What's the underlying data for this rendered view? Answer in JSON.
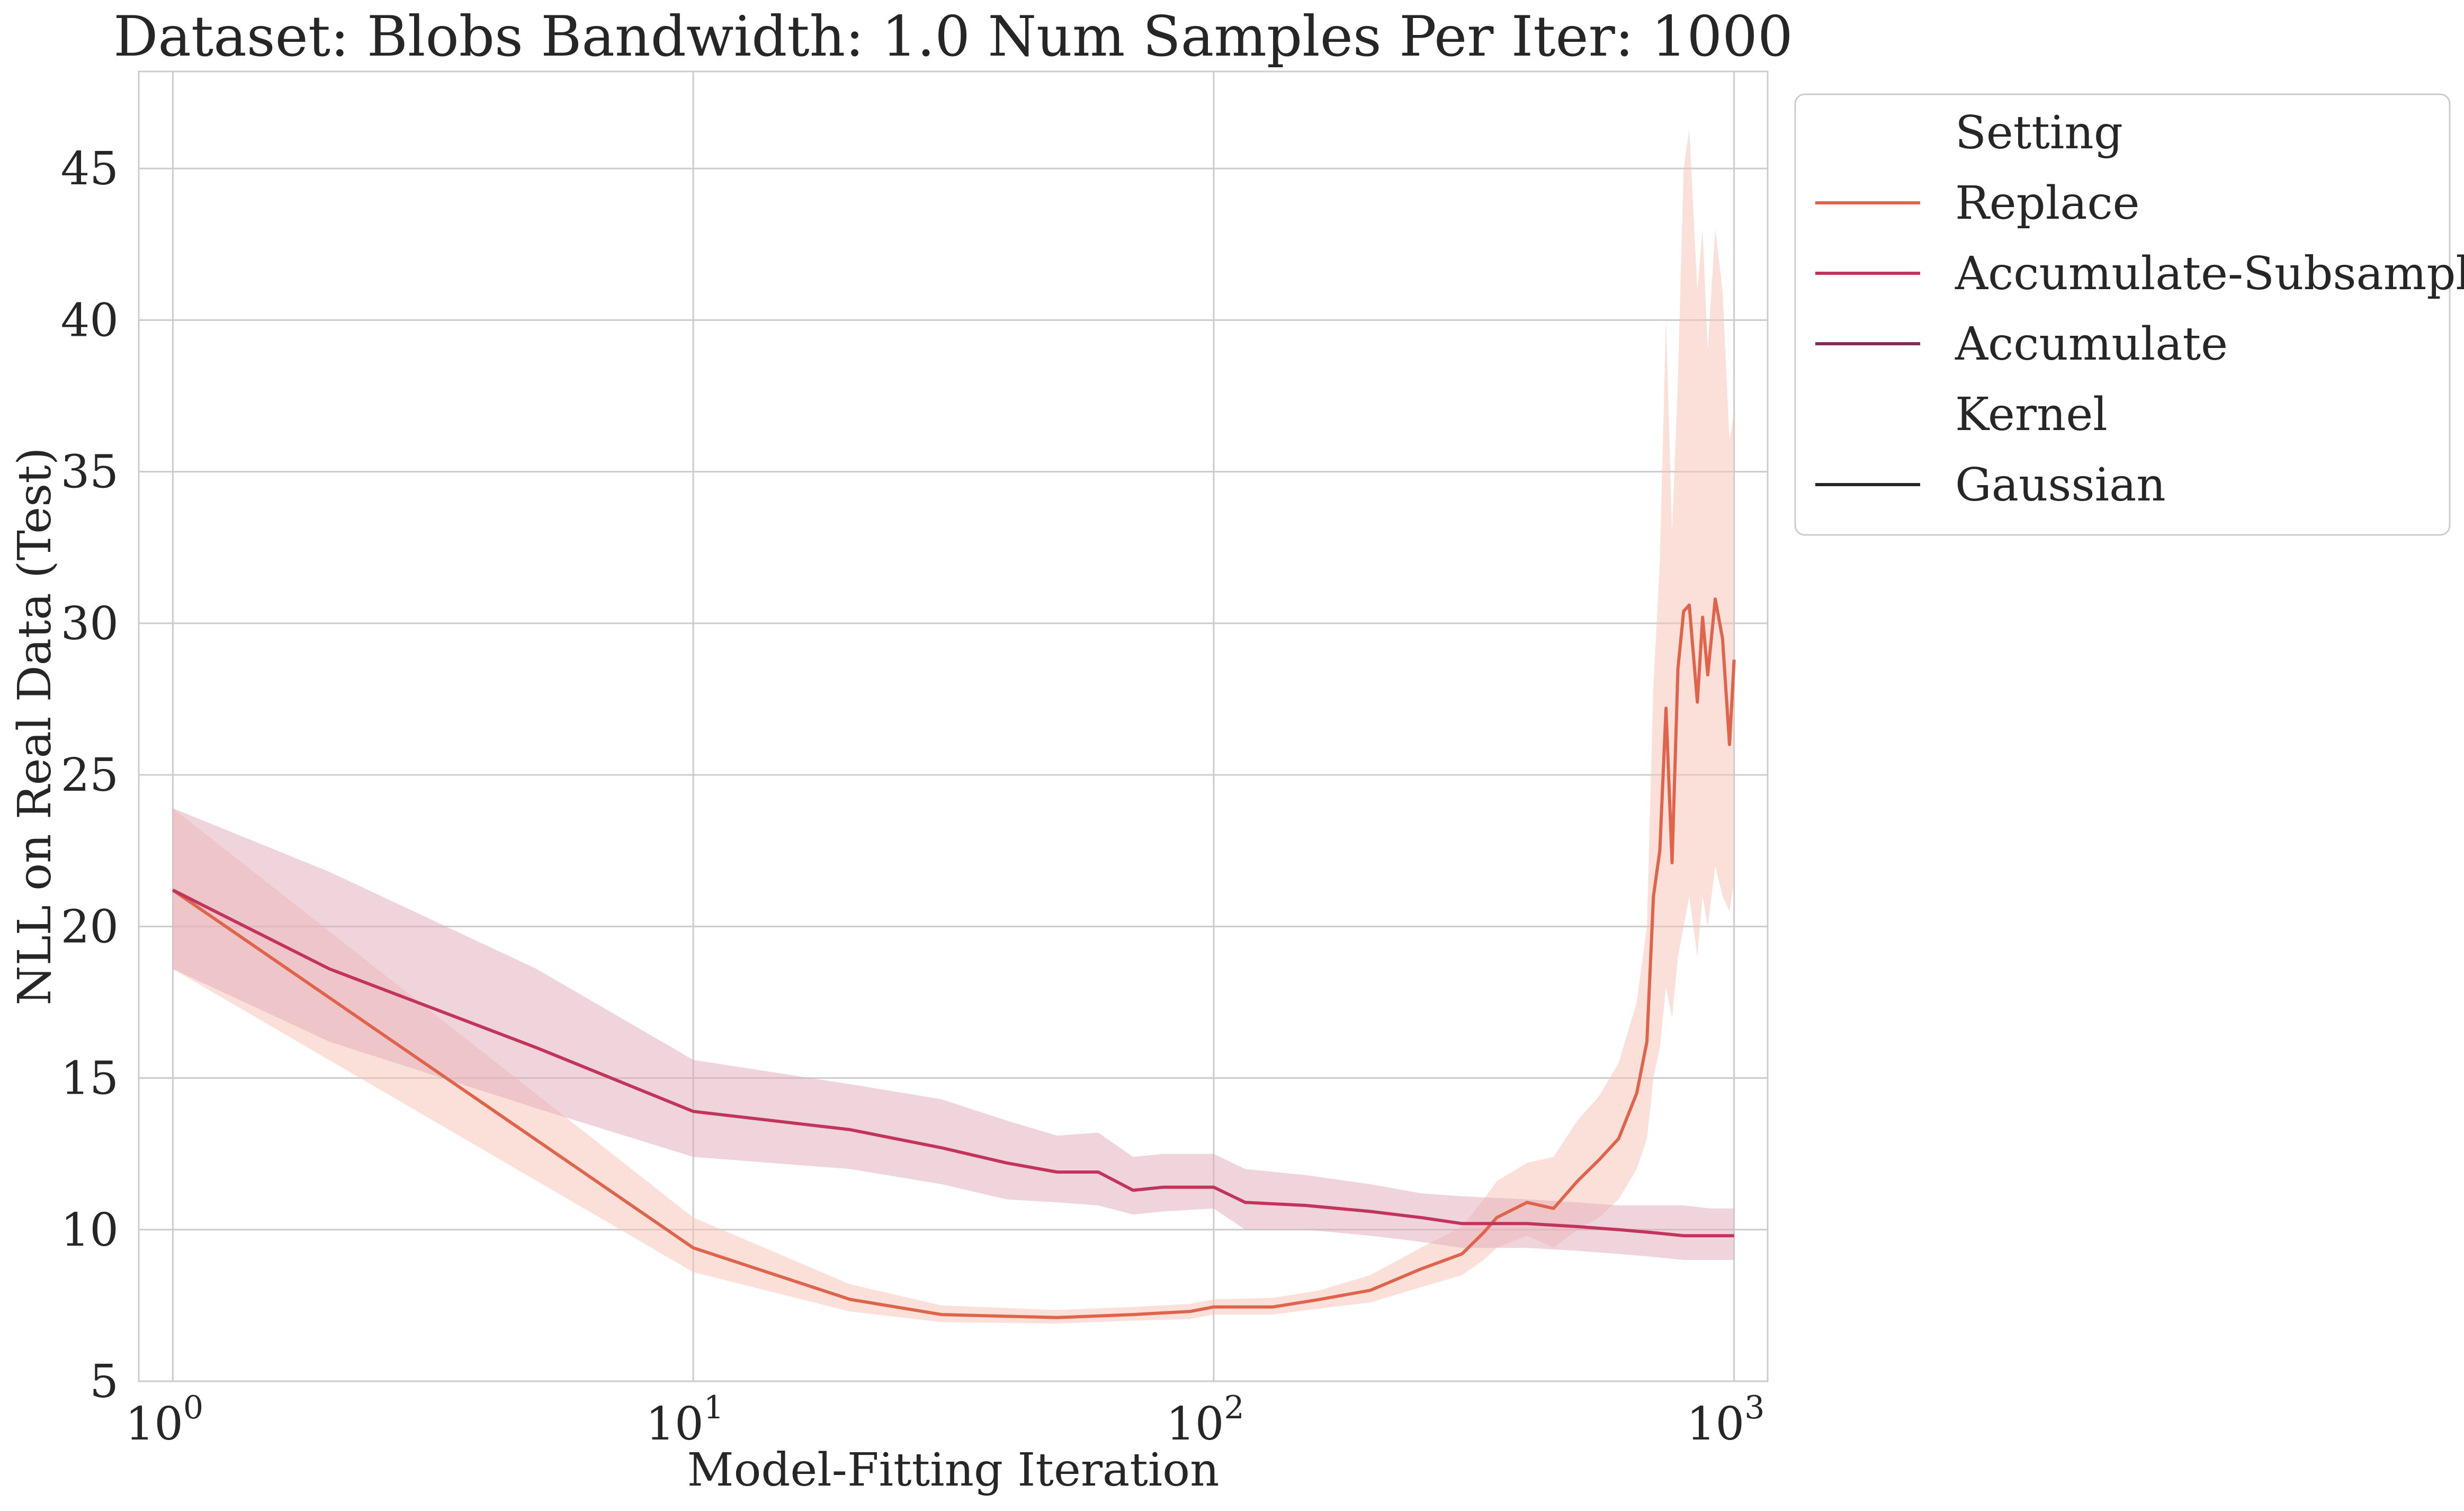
{
  "chart_data": {
    "type": "line",
    "title": "Dataset: Blobs Bandwidth: 1.0 Num Samples Per Iter: 1000",
    "xlabel": "Model-Fitting Iteration",
    "ylabel": "NLL on Real Data (Test)",
    "xscale": "log",
    "xlim": [
      0.86,
      1160
    ],
    "ylim": [
      5,
      48.2
    ],
    "x_ticks": [
      {
        "value": 1,
        "base": "10",
        "exp": "0"
      },
      {
        "value": 10,
        "base": "10",
        "exp": "1"
      },
      {
        "value": 100,
        "base": "10",
        "exp": "2"
      },
      {
        "value": 1000,
        "base": "10",
        "exp": "3"
      }
    ],
    "y_ticks": [
      5,
      10,
      15,
      20,
      25,
      30,
      35,
      40,
      45
    ],
    "grid": true,
    "legend_placement": "outside upper right",
    "legend": {
      "groups": [
        {
          "title": "Setting",
          "entries": [
            {
              "label": "Replace",
              "color": "#e0634b"
            },
            {
              "label": "Accumulate-Subsample",
              "color": "#c2345c"
            },
            {
              "label": "Accumulate",
              "color": "#862c5d"
            }
          ]
        },
        {
          "title": "Kernel",
          "entries": [
            {
              "label": "Gaussian",
              "color": "#262626"
            }
          ]
        }
      ]
    },
    "series": [
      {
        "name": "Replace",
        "color": "#e0634b",
        "band_color": "#f5c1b4",
        "points": [
          [
            1,
            21.2,
            18.6,
            23.9
          ],
          [
            10,
            9.4,
            8.6,
            10.4
          ],
          [
            20,
            7.7,
            7.3,
            8.2
          ],
          [
            30,
            7.2,
            6.95,
            7.5
          ],
          [
            50,
            7.1,
            6.9,
            7.35
          ],
          [
            70,
            7.2,
            7.0,
            7.45
          ],
          [
            90,
            7.3,
            7.05,
            7.55
          ],
          [
            100,
            7.45,
            7.2,
            7.7
          ],
          [
            130,
            7.45,
            7.2,
            7.75
          ],
          [
            160,
            7.7,
            7.4,
            8.0
          ],
          [
            200,
            8.0,
            7.6,
            8.5
          ],
          [
            250,
            8.7,
            8.1,
            9.4
          ],
          [
            300,
            9.2,
            8.5,
            10.1
          ],
          [
            330,
            9.9,
            9.0,
            11.0
          ],
          [
            350,
            10.4,
            9.4,
            11.6
          ],
          [
            400,
            10.9,
            9.8,
            12.2
          ],
          [
            450,
            10.7,
            9.4,
            12.4
          ],
          [
            500,
            11.6,
            10.0,
            13.6
          ],
          [
            550,
            12.3,
            10.4,
            14.4
          ],
          [
            600,
            13.0,
            11.0,
            15.5
          ],
          [
            650,
            14.5,
            12.0,
            17.5
          ],
          [
            680,
            16.2,
            13.0,
            20.0
          ],
          [
            700,
            21.0,
            15.0,
            28.0
          ],
          [
            720,
            22.5,
            16.0,
            32.0
          ],
          [
            740,
            27.2,
            18.0,
            40.0
          ],
          [
            760,
            22.1,
            17.0,
            33.0
          ],
          [
            780,
            28.5,
            19.0,
            38.0
          ],
          [
            800,
            30.4,
            20.0,
            45.0
          ],
          [
            820,
            30.6,
            21.0,
            46.3
          ],
          [
            850,
            27.4,
            19.0,
            41.0
          ],
          [
            870,
            30.2,
            21.0,
            43.0
          ],
          [
            890,
            28.3,
            20.0,
            39.0
          ],
          [
            920,
            30.8,
            22.0,
            43.0
          ],
          [
            950,
            29.5,
            21.0,
            41.0
          ],
          [
            980,
            26.0,
            20.5,
            36.0
          ],
          [
            1000,
            28.8,
            21.5,
            37.0
          ]
        ]
      },
      {
        "name": "Accumulate-Subsample",
        "color": "#c2345c",
        "band_color": "#e2a9b9",
        "points": [
          [
            1,
            21.2,
            18.6,
            23.9
          ],
          [
            2,
            18.6,
            16.2,
            21.8
          ],
          [
            5,
            16.0,
            14.0,
            18.6
          ],
          [
            10,
            13.9,
            12.4,
            15.6
          ],
          [
            20,
            13.3,
            12.0,
            14.8
          ],
          [
            30,
            12.7,
            11.5,
            14.3
          ],
          [
            40,
            12.2,
            11.0,
            13.6
          ],
          [
            50,
            11.9,
            10.9,
            13.1
          ],
          [
            60,
            11.9,
            10.8,
            13.2
          ],
          [
            70,
            11.3,
            10.5,
            12.4
          ],
          [
            80,
            11.4,
            10.6,
            12.5
          ],
          [
            100,
            11.4,
            10.7,
            12.5
          ],
          [
            115,
            10.9,
            10.0,
            12.0
          ],
          [
            150,
            10.8,
            10.0,
            11.8
          ],
          [
            200,
            10.6,
            9.8,
            11.5
          ],
          [
            250,
            10.4,
            9.6,
            11.2
          ],
          [
            300,
            10.2,
            9.4,
            11.1
          ],
          [
            400,
            10.2,
            9.4,
            11.0
          ],
          [
            500,
            10.1,
            9.3,
            10.9
          ],
          [
            600,
            10.0,
            9.2,
            10.8
          ],
          [
            700,
            9.9,
            9.1,
            10.8
          ],
          [
            800,
            9.8,
            9.0,
            10.8
          ],
          [
            900,
            9.8,
            9.0,
            10.7
          ],
          [
            1000,
            9.8,
            9.0,
            10.7
          ]
        ]
      }
    ]
  }
}
